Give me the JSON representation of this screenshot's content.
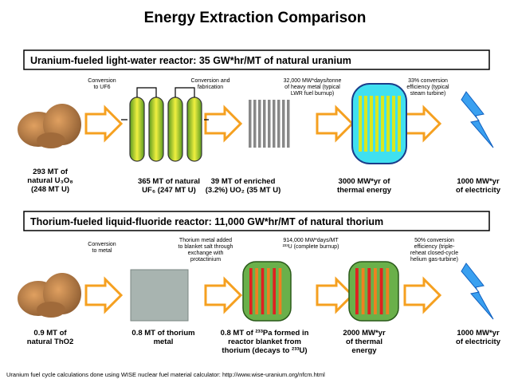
{
  "title": "Energy Extraction Comparison",
  "sections": [
    {
      "heading": "Uranium-fueled light-water reactor:  35 GW*hr/MT of natural uranium",
      "notes": [
        [
          "Conversion",
          "to UF6"
        ],
        [
          "Conversion and",
          "fabrication"
        ],
        [
          "32,000 MW*days/tonne",
          "of heavy metal (typical",
          "LWR fuel burnup)"
        ],
        [
          "33% conversion",
          "efficiency (typical",
          "steam turbine)"
        ]
      ],
      "labels": [
        [
          "293 MT of",
          "natural U₃O₈",
          "(248 MT U)"
        ],
        [
          "365 MT of natural",
          "UF₆ (247 MT U)"
        ],
        [
          "39 MT of enriched",
          "(3.2%) UO₂ (35 MT U)"
        ],
        [
          "3000 MW*yr of",
          "thermal energy"
        ],
        [
          "1000 MW*yr",
          "of electricity"
        ]
      ]
    },
    {
      "heading": "Thorium-fueled liquid-fluoride reactor:  11,000 GW*hr/MT of natural thorium",
      "notes": [
        [
          "Conversion",
          "to metal"
        ],
        [
          "Thorium metal added",
          "to blanket salt through",
          "exchange with",
          "protactinium"
        ],
        [
          "914,000 MW*days/MT",
          "²³³U (complete burnup)"
        ],
        [
          "50% conversion",
          "efficiency (triple-",
          "reheat closed-cycle",
          "helium gas-turbine)"
        ]
      ],
      "labels": [
        [
          "0.9 MT of",
          "natural ThO2"
        ],
        [
          "0.8 MT of thorium",
          "metal"
        ],
        [
          "0.8 MT of ²³³Pa formed in",
          "reactor blanket from",
          "thorium (decays to ²³³U)"
        ],
        [
          "2000 MW*yr",
          "of thermal",
          "energy"
        ],
        [
          "1000 MW*yr",
          "of electricity"
        ]
      ]
    }
  ],
  "footer": "Uranium fuel cycle calculations done using WISE nuclear fuel material calculator: http://www.wise-uranium.org/nfcm.html"
}
